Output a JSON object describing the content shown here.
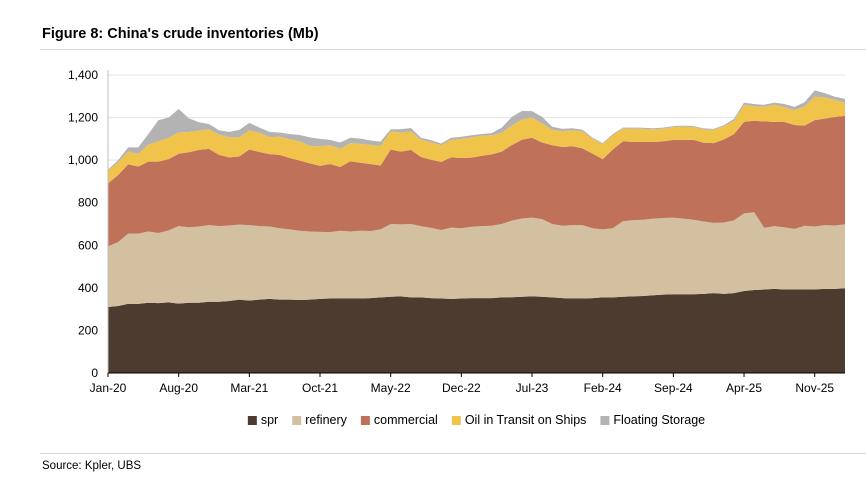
{
  "figure": {
    "title": "Figure 8: China's crude inventories (Mb)",
    "source": "Source: Kpler, UBS"
  },
  "chart_data": {
    "type": "area",
    "stacked": true,
    "title": "Figure 8: China's crude inventories (Mb)",
    "xlabel": "",
    "ylabel": "",
    "ylim": [
      0,
      1400
    ],
    "yticks": [
      0,
      200,
      400,
      600,
      800,
      1000,
      1200,
      1400
    ],
    "ytick_labels": [
      "0",
      "200",
      "400",
      "600",
      "800",
      "1,000",
      "1,200",
      "1,400"
    ],
    "xtick_labels": [
      "Jan-20",
      "Aug-20",
      "Mar-21",
      "Oct-21",
      "May-22",
      "Dec-22",
      "Jul-23",
      "Feb-24",
      "Sep-24",
      "Apr-25",
      "Nov-25"
    ],
    "xtick_index": [
      0,
      7,
      14,
      21,
      28,
      35,
      42,
      49,
      56,
      63,
      70
    ],
    "gridlines": true,
    "legend_position": "bottom",
    "x": [
      "Jan-20",
      "Feb-20",
      "Mar-20",
      "Apr-20",
      "May-20",
      "Jun-20",
      "Jul-20",
      "Aug-20",
      "Sep-20",
      "Oct-20",
      "Nov-20",
      "Dec-20",
      "Jan-21",
      "Feb-21",
      "Mar-21",
      "Apr-21",
      "May-21",
      "Jun-21",
      "Jul-21",
      "Aug-21",
      "Sep-21",
      "Oct-21",
      "Nov-21",
      "Dec-21",
      "Jan-22",
      "Feb-22",
      "Mar-22",
      "Apr-22",
      "May-22",
      "Jun-22",
      "Jul-22",
      "Aug-22",
      "Sep-22",
      "Oct-22",
      "Nov-22",
      "Dec-22",
      "Jan-23",
      "Feb-23",
      "Mar-23",
      "Apr-23",
      "May-23",
      "Jun-23",
      "Jul-23",
      "Aug-23",
      "Sep-23",
      "Oct-23",
      "Nov-23",
      "Dec-23",
      "Jan-24",
      "Feb-24",
      "Mar-24",
      "Apr-24",
      "May-24",
      "Jun-24",
      "Jul-24",
      "Aug-24",
      "Sep-24",
      "Oct-24",
      "Nov-24",
      "Dec-24",
      "Jan-25",
      "Feb-25",
      "Mar-25",
      "Apr-25",
      "May-25",
      "Jun-25",
      "Jul-25",
      "Aug-25",
      "Sep-25",
      "Oct-25",
      "Nov-25",
      "Dec-25",
      "Jan-26",
      "Feb-26"
    ],
    "series": [
      {
        "name": "spr",
        "color": "#4e3b2f",
        "values": [
          310,
          315,
          325,
          325,
          330,
          328,
          332,
          326,
          330,
          330,
          335,
          335,
          338,
          345,
          340,
          345,
          348,
          345,
          345,
          343,
          345,
          348,
          350,
          350,
          350,
          350,
          352,
          355,
          358,
          360,
          355,
          355,
          352,
          350,
          348,
          350,
          352,
          352,
          352,
          355,
          356,
          358,
          360,
          358,
          355,
          352,
          350,
          350,
          352,
          355,
          355,
          358,
          360,
          362,
          365,
          368,
          370,
          370,
          370,
          372,
          375,
          372,
          375,
          385,
          390,
          392,
          395,
          392,
          392,
          392,
          393,
          395,
          395,
          398
        ]
      },
      {
        "name": "refinery",
        "color": "#d3c0a0",
        "values": [
          285,
          300,
          330,
          330,
          335,
          330,
          338,
          364,
          355,
          358,
          360,
          355,
          355,
          352,
          355,
          345,
          340,
          335,
          330,
          325,
          320,
          315,
          312,
          318,
          315,
          318,
          315,
          320,
          342,
          338,
          345,
          335,
          330,
          322,
          335,
          330,
          335,
          338,
          340,
          345,
          360,
          368,
          370,
          365,
          345,
          340,
          345,
          345,
          328,
          320,
          325,
          355,
          358,
          358,
          360,
          360,
          360,
          355,
          350,
          340,
          330,
          335,
          342,
          365,
          365,
          290,
          295,
          292,
          285,
          300,
          295,
          300,
          298,
          300
        ]
      },
      {
        "name": "commercial",
        "color": "#c0715a",
        "values": [
          295,
          315,
          325,
          315,
          328,
          335,
          335,
          340,
          352,
          360,
          358,
          335,
          320,
          320,
          355,
          348,
          340,
          345,
          335,
          330,
          320,
          310,
          320,
          300,
          330,
          320,
          315,
          300,
          350,
          342,
          348,
          325,
          320,
          320,
          330,
          330,
          325,
          330,
          335,
          340,
          355,
          370,
          375,
          360,
          370,
          370,
          370,
          360,
          350,
          330,
          370,
          375,
          368,
          365,
          360,
          360,
          365,
          370,
          375,
          370,
          375,
          390,
          405,
          430,
          430,
          500,
          490,
          495,
          488,
          470,
          500,
          500,
          510,
          510
        ]
      },
      {
        "name": "Oil in Transit on Ships",
        "color": "#f0c44a",
        "values": [
          60,
          60,
          60,
          60,
          80,
          95,
          100,
          100,
          95,
          90,
          92,
          95,
          95,
          90,
          90,
          90,
          80,
          85,
          88,
          90,
          82,
          92,
          88,
          85,
          85,
          88,
          90,
          92,
          85,
          90,
          88,
          80,
          82,
          78,
          82,
          90,
          95,
          95,
          90,
          88,
          92,
          95,
          95,
          90,
          72,
          75,
          75,
          80,
          70,
          70,
          68,
          60,
          62,
          62,
          60,
          60,
          60,
          62,
          60,
          62,
          62,
          62,
          62,
          80,
          68,
          68,
          80,
          70,
          70,
          90,
          110,
          100,
          80,
          60
        ]
      },
      {
        "name": "Floating Storage",
        "color": "#b3b3b3",
        "values": [
          5,
          10,
          20,
          30,
          50,
          100,
          95,
          110,
          65,
          40,
          25,
          20,
          25,
          35,
          35,
          25,
          25,
          20,
          25,
          30,
          40,
          35,
          25,
          30,
          25,
          25,
          20,
          20,
          10,
          15,
          15,
          10,
          10,
          8,
          10,
          10,
          10,
          8,
          10,
          25,
          40,
          40,
          30,
          30,
          15,
          10,
          10,
          8,
          5,
          5,
          5,
          5,
          5,
          5,
          5,
          5,
          5,
          5,
          5,
          5,
          5,
          5,
          10,
          10,
          10,
          10,
          10,
          15,
          15,
          20,
          30,
          20,
          15,
          20
        ]
      }
    ]
  }
}
